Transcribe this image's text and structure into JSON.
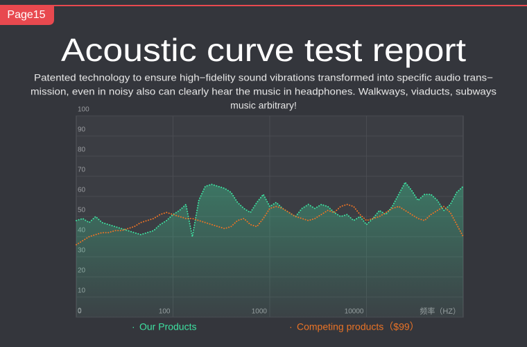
{
  "page_label": "Page15",
  "chart_data": {
    "type": "line",
    "title": "Acoustic curve test report",
    "subtitle": [
      "Patented technology to ensure high−fidelity sound vibrations transformed into specific audio trans−",
      "mission, even in noisy also can clearly hear the music in headphones. Walkways, viaducts, subways",
      "music arbitrary!"
    ],
    "x_label": "频率（HZ）",
    "categories": [
      "0",
      null,
      null,
      null,
      null,
      null,
      null,
      null,
      null,
      null,
      null,
      null,
      null,
      null,
      null,
      "100",
      null,
      null,
      null,
      null,
      null,
      null,
      null,
      null,
      null,
      null,
      null,
      null,
      null,
      null,
      "1000",
      null,
      null,
      null,
      null,
      null,
      null,
      null,
      null,
      null,
      null,
      null,
      null,
      null,
      null,
      "10000",
      null,
      null,
      null,
      null,
      null,
      null,
      null,
      null,
      null,
      null,
      null,
      null,
      null,
      null,
      null
    ],
    "ylim": [
      0,
      100
    ],
    "yticks": [
      0,
      10,
      20,
      30,
      40,
      50,
      60,
      70,
      80,
      90,
      100
    ],
    "grid": true,
    "series": [
      {
        "name": "Our Products",
        "color": "#3ee0a0",
        "values": [
          48,
          49,
          47,
          50,
          47,
          46,
          45,
          44,
          43,
          42,
          41,
          42,
          43,
          46,
          48,
          51,
          53,
          56,
          40,
          58,
          65,
          66,
          65,
          64,
          62,
          57,
          54,
          52,
          57,
          61,
          55,
          57,
          54,
          52,
          50,
          54,
          56,
          54,
          56,
          55,
          52,
          50,
          51,
          48,
          50,
          46,
          49,
          53,
          51,
          55,
          61,
          67,
          63,
          58,
          61,
          61,
          58,
          53,
          56,
          62,
          65
        ]
      },
      {
        "name": "Competing products（$99）",
        "color": "#ea7326",
        "values": [
          36,
          38,
          40,
          41,
          42,
          42,
          43,
          43,
          44,
          45,
          47,
          48,
          49,
          51,
          52,
          51,
          50,
          49,
          49,
          48,
          47,
          46,
          45,
          44,
          45,
          48,
          49,
          46,
          45,
          49,
          54,
          55,
          54,
          52,
          50,
          49,
          48,
          49,
          51,
          53,
          52,
          55,
          56,
          55,
          51,
          48,
          49,
          50,
          52,
          54,
          55,
          53,
          51,
          49,
          48,
          51,
          53,
          55,
          52,
          46,
          40
        ]
      }
    ]
  }
}
